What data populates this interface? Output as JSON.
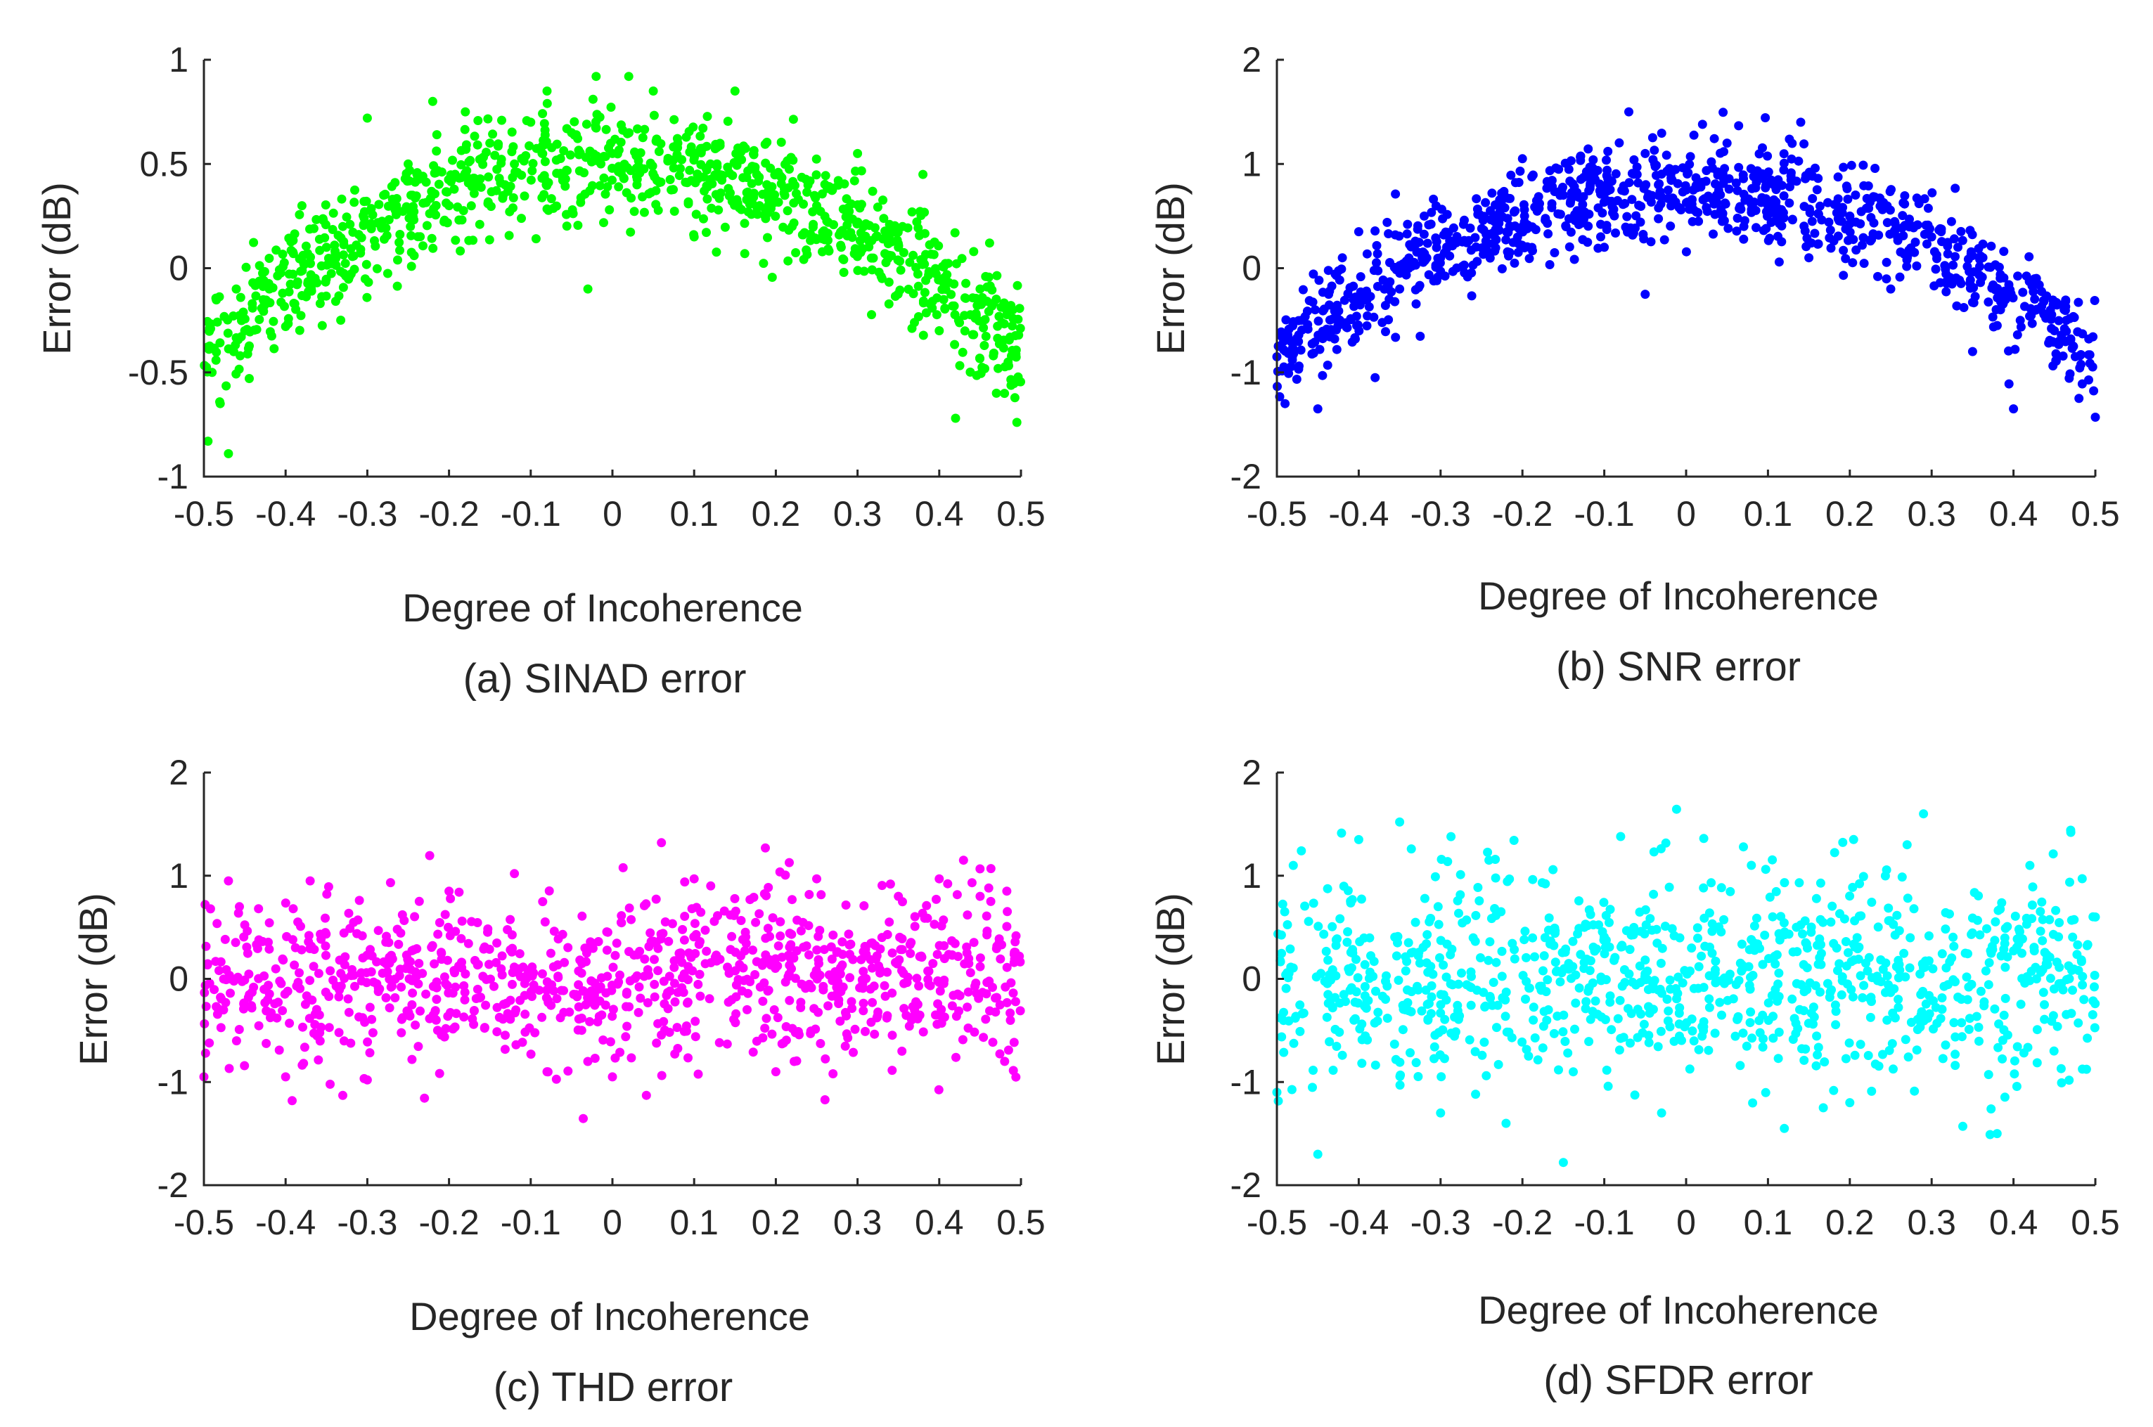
{
  "figure": {
    "subplots": [
      {
        "id": "a",
        "caption": "(a) SINAD error",
        "color": "#00ff00"
      },
      {
        "id": "b",
        "caption": "(b) SNR error",
        "color": "#0000ff"
      },
      {
        "id": "c",
        "caption": "(c) THD error",
        "color": "#ff00ff"
      },
      {
        "id": "d",
        "caption": "(d) SFDR error",
        "color": "#00ffff"
      }
    ]
  },
  "chart_data": [
    {
      "type": "scatter",
      "title": "(a) SINAD error",
      "xlabel": "Degree of Incoherence",
      "ylabel": "Error (dB)",
      "xlim": [
        -0.5,
        0.5
      ],
      "ylim": [
        -1,
        1
      ],
      "xticks": [
        "-0.5",
        "-0.4",
        "-0.3",
        "-0.2",
        "-0.1",
        "0",
        "0.1",
        "0.2",
        "0.3",
        "0.4",
        "0.5"
      ],
      "yticks": [
        "-1",
        "-0.5",
        "0",
        "0.5",
        "1"
      ],
      "grid": false,
      "color": "#00ff00",
      "pattern": {
        "model": "quadratic",
        "center": 0.5,
        "edge": -0.4,
        "noise_sd": 0.14,
        "n_points": 1000
      },
      "x": [
        -0.495,
        -0.49,
        -0.48,
        -0.47,
        -0.45,
        -0.42,
        -0.4,
        -0.38,
        -0.35,
        -0.33,
        -0.3,
        -0.28,
        -0.25,
        -0.22,
        -0.2,
        -0.18,
        -0.15,
        -0.12,
        -0.1,
        -0.08,
        -0.05,
        -0.03,
        -0.02,
        0,
        0.02,
        0.03,
        0.05,
        0.08,
        0.1,
        0.12,
        0.15,
        0.18,
        0.2,
        0.22,
        0.25,
        0.28,
        0.3,
        0.33,
        0.35,
        0.38,
        0.4,
        0.42,
        0.45,
        0.47,
        0.49,
        0.495
      ],
      "y": [
        -0.83,
        -0.5,
        -0.65,
        -0.89,
        -0.3,
        -0.1,
        -0.28,
        0.3,
        0.1,
        0.2,
        0.72,
        0.35,
        0.5,
        0.8,
        0.3,
        0.75,
        0.6,
        0.5,
        0.7,
        0.85,
        0.65,
        -0.1,
        0.92,
        0.55,
        0.92,
        0.4,
        0.85,
        0.6,
        0.15,
        0.5,
        0.85,
        0.3,
        0.45,
        0.2,
        0.3,
        0.1,
        0.55,
        -0.05,
        0.1,
        0.45,
        -0.3,
        -0.72,
        -0.1,
        -0.6,
        -0.2,
        -0.74
      ]
    },
    {
      "type": "scatter",
      "title": "(b) SNR error",
      "xlabel": "Degree of Incoherence",
      "ylabel": "Error (dB)",
      "xlim": [
        -0.5,
        0.5
      ],
      "ylim": [
        -2,
        2
      ],
      "xticks": [
        "-0.5",
        "-0.4",
        "-0.3",
        "-0.2",
        "-0.1",
        "0",
        "0.1",
        "0.2",
        "0.3",
        "0.4",
        "0.5"
      ],
      "yticks": [
        "-2",
        "-1",
        "0",
        "1",
        "2"
      ],
      "grid": false,
      "color": "#0000ff",
      "pattern": {
        "model": "quadratic",
        "center": 0.75,
        "edge": -0.85,
        "noise_sd": 0.24,
        "n_points": 1000
      },
      "x": [
        -0.5,
        -0.49,
        -0.47,
        -0.45,
        -0.42,
        -0.4,
        -0.38,
        -0.35,
        -0.32,
        -0.3,
        -0.25,
        -0.2,
        -0.15,
        -0.1,
        -0.07,
        -0.05,
        -0.05,
        0,
        0.02,
        0.05,
        0.1,
        0.14,
        0.15,
        0.2,
        0.25,
        0.3,
        0.35,
        0.4,
        0.45,
        0.48,
        0.5
      ],
      "y": [
        -0.85,
        -1.3,
        -0.5,
        -1.35,
        0.1,
        0.35,
        -1.05,
        -0.2,
        0.5,
        0.1,
        0.5,
        1.05,
        0.7,
        0.2,
        1.5,
        -0.25,
        1.1,
        0.75,
        1.38,
        1.2,
        0.6,
        1.4,
        0.1,
        0.5,
        -0.2,
        0.3,
        -0.8,
        -1.35,
        -0.6,
        -1.25,
        -1.43
      ]
    },
    {
      "type": "scatter",
      "title": "(c) THD error",
      "xlabel": "Degree of Incoherence",
      "ylabel": "Error (dB)",
      "xlim": [
        -0.5,
        0.5
      ],
      "ylim": [
        -2,
        2
      ],
      "xticks": [
        "-0.5",
        "-0.4",
        "-0.3",
        "-0.2",
        "-0.1",
        "0",
        "0.1",
        "0.2",
        "0.3",
        "0.4",
        "0.5"
      ],
      "yticks": [
        "-2",
        "-1",
        "0",
        "1",
        "2"
      ],
      "grid": false,
      "color": "#ff00ff",
      "pattern": {
        "model": "constant",
        "center": 0,
        "edge": 0,
        "noise_sd": 0.4,
        "n_points": 1000
      },
      "x": [
        -0.5,
        -0.47,
        -0.4,
        -0.37,
        -0.33,
        -0.3,
        -0.2,
        -0.12,
        -0.08,
        0,
        0.06,
        0.1,
        0.2,
        0.25,
        0.27,
        0.35,
        0.4,
        0.45,
        0.48
      ],
      "y": [
        -0.95,
        0.95,
        -0.95,
        0.95,
        -1.13,
        -0.98,
        0.85,
        1.02,
        -0.9,
        -0.95,
        1.32,
        0.97,
        -0.9,
        0.97,
        -0.92,
        0.8,
        0.97,
        0.8,
        -0.8
      ]
    },
    {
      "type": "scatter",
      "title": "(d) SFDR error",
      "xlabel": "Degree of Incoherence",
      "ylabel": "Error (dB)",
      "xlim": [
        -0.5,
        0.5
      ],
      "ylim": [
        -2,
        2
      ],
      "xticks": [
        "-0.5",
        "-0.4",
        "-0.3",
        "-0.2",
        "-0.1",
        "0",
        "0.1",
        "0.2",
        "0.3",
        "0.4",
        "0.5"
      ],
      "yticks": [
        "-2",
        "-1",
        "0",
        "1",
        "2"
      ],
      "grid": false,
      "color": "#00ffff",
      "pattern": {
        "model": "constant",
        "center": 0,
        "edge": 0,
        "noise_sd": 0.5,
        "n_points": 1000
      },
      "x": [
        -0.5,
        -0.48,
        -0.45,
        -0.4,
        -0.35,
        -0.3,
        -0.22,
        -0.15,
        -0.08,
        -0.03,
        0.07,
        0.12,
        0.2,
        0.27,
        0.29,
        0.38,
        0.42,
        0.47,
        0.5
      ],
      "y": [
        -1.1,
        1.1,
        -1.7,
        1.35,
        1.52,
        -1.3,
        -1.4,
        -1.78,
        1.38,
        -1.3,
        1.28,
        -1.45,
        -1.2,
        1.3,
        1.6,
        -1.5,
        1.1,
        1.42,
        0.6
      ]
    }
  ]
}
